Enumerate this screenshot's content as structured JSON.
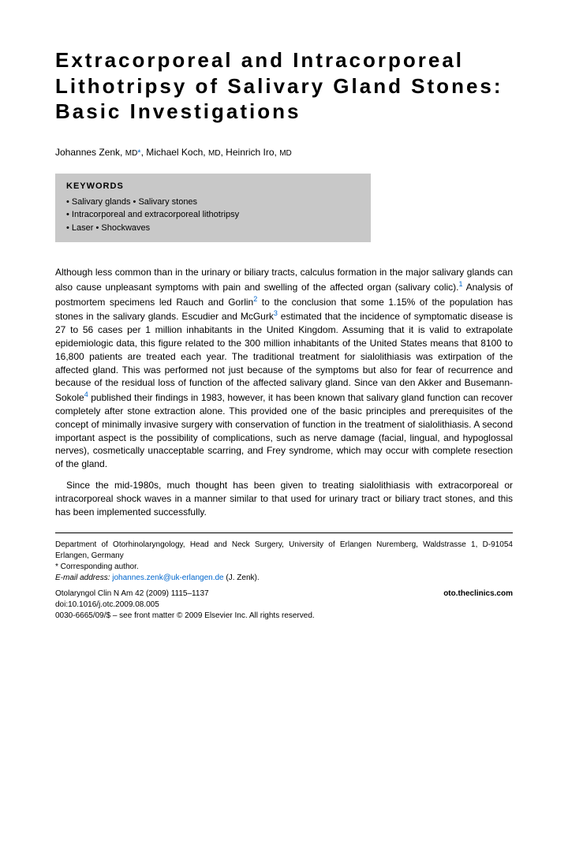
{
  "title": "Extracorporeal and Intracorporeal Lithotripsy of Salivary Gland Stones: Basic Investigations",
  "authors_html": "Johannes Zenk, <span class='degree'>MD</span><span class='corresp'>*</span>, Michael Koch, <span class='degree'>MD</span>, Heinrich Iro, <span class='degree'>MD</span>",
  "keywords": {
    "heading": "KEYWORDS",
    "lines": [
      "• Salivary glands • Salivary stones",
      "• Intracorporeal and extracorporeal lithotripsy",
      "• Laser • Shockwaves"
    ]
  },
  "para1": "Although less common than in the urinary or biliary tracts, calculus formation in the major salivary glands can also cause unpleasant symptoms with pain and swelling of the affected organ (salivary colic).<span class='sup'>1</span> Analysis of postmortem specimens led Rauch and Gorlin<span class='sup'>2</span> to the conclusion that some 1.15% of the population has stones in the salivary glands. Escudier and McGurk<span class='sup'>3</span> estimated that the incidence of symptomatic disease is 27 to 56 cases per 1 million inhabitants in the United Kingdom. Assuming that it is valid to extrapolate epidemiologic data, this figure related to the 300 million inhabitants of the United States means that 8100 to 16,800 patients are treated each year. The traditional treatment for sialolithiasis was extirpation of the affected gland. This was performed not just because of the symptoms but also for fear of recurrence and because of the residual loss of function of the affected salivary gland. Since van den Akker and Busemann-Sokole<span class='sup'>4</span> published their findings in 1983, however, it has been known that salivary gland function can recover completely after stone extraction alone. This provided one of the basic principles and prerequisites of the concept of minimally invasive surgery with conservation of function in the treatment of sialolithiasis. A second important aspect is the possibility of complications, such as nerve damage (facial, lingual, and hypoglossal nerves), cosmetically unacceptable scarring, and Frey syndrome, which may occur with complete resection of the gland.",
  "para2": "Since the mid-1980s, much thought has been given to treating sialolithiasis with extracorporeal or intracorporeal shock waves in a manner similar to that used for urinary tract or biliary tract stones, and this has been implemented successfully.",
  "footer": {
    "affiliation": "Department of Otorhinolaryngology, Head and Neck Surgery, University of Erlangen Nuremberg, Waldstrasse 1, D-91054 Erlangen, Germany",
    "corresponding": "* Corresponding author.",
    "email_label": "E-mail address:",
    "email": "johannes.zenk@uk-erlangen.de",
    "email_suffix": " (J. Zenk).",
    "citation": "Otolaryngol Clin N Am 42 (2009) 1115–1137",
    "doi": "doi:10.1016/j.otc.2009.08.005",
    "site": "oto.theclinics.com",
    "copyright": "0030-6665/09/$ – see front matter © 2009 Elsevier Inc. All rights reserved."
  }
}
